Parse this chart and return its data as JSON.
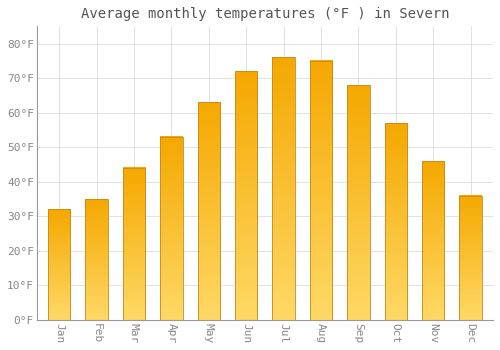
{
  "title": "Average monthly temperatures (°F ) in Severn",
  "months": [
    "Jan",
    "Feb",
    "Mar",
    "Apr",
    "May",
    "Jun",
    "Jul",
    "Aug",
    "Sep",
    "Oct",
    "Nov",
    "Dec"
  ],
  "values": [
    32,
    35,
    44,
    53,
    63,
    72,
    76,
    75,
    68,
    57,
    46,
    36
  ],
  "bar_color_top": "#F5A800",
  "bar_color_bottom": "#FFD966",
  "bar_edge_color": "#C8881A",
  "background_color": "#FFFFFF",
  "grid_color": "#DDDDDD",
  "tick_label_color": "#888888",
  "title_color": "#555555",
  "ylim": [
    0,
    85
  ],
  "yticks": [
    0,
    10,
    20,
    30,
    40,
    50,
    60,
    70,
    80
  ],
  "ytick_labels": [
    "0°F",
    "10°F",
    "20°F",
    "30°F",
    "40°F",
    "50°F",
    "60°F",
    "70°F",
    "80°F"
  ],
  "title_fontsize": 10,
  "tick_fontsize": 8,
  "font_family": "monospace",
  "bar_width": 0.6
}
